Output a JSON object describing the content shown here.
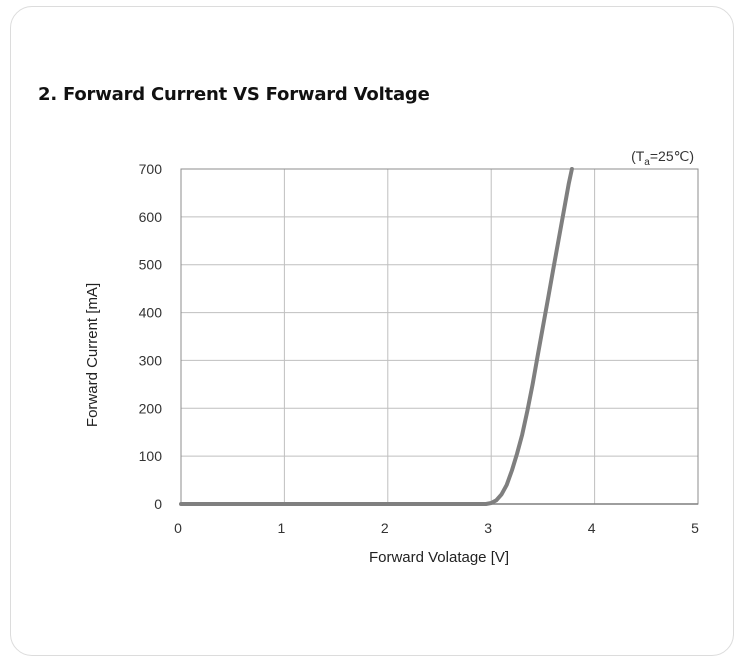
{
  "section_title": "2. Forward Current VS Forward Voltage",
  "condition": {
    "prefix": "(T",
    "subscript": "a",
    "suffix": "=25℃)"
  },
  "chart_data": {
    "type": "line",
    "title": "2. Forward Current VS Forward Voltage",
    "xlabel": "Forward  Volatage [V]",
    "ylabel": "Forward Current [mA]",
    "xlim": [
      0,
      5
    ],
    "ylim": [
      0,
      700
    ],
    "x_ticks": [
      0,
      1,
      2,
      3,
      4,
      5
    ],
    "y_ticks": [
      0,
      100,
      200,
      300,
      400,
      500,
      600,
      700
    ],
    "grid": true,
    "legend": "none",
    "series": [
      {
        "color": "#7f7f7f",
        "x": [
          0,
          2.95,
          3.0,
          3.05,
          3.1,
          3.15,
          3.2,
          3.25,
          3.3,
          3.35,
          3.4,
          3.45,
          3.5,
          3.55,
          3.6,
          3.65,
          3.7,
          3.75,
          3.78
        ],
        "y": [
          0,
          0,
          2,
          8,
          20,
          40,
          70,
          105,
          145,
          195,
          250,
          310,
          370,
          430,
          490,
          550,
          610,
          670,
          700
        ]
      }
    ]
  }
}
